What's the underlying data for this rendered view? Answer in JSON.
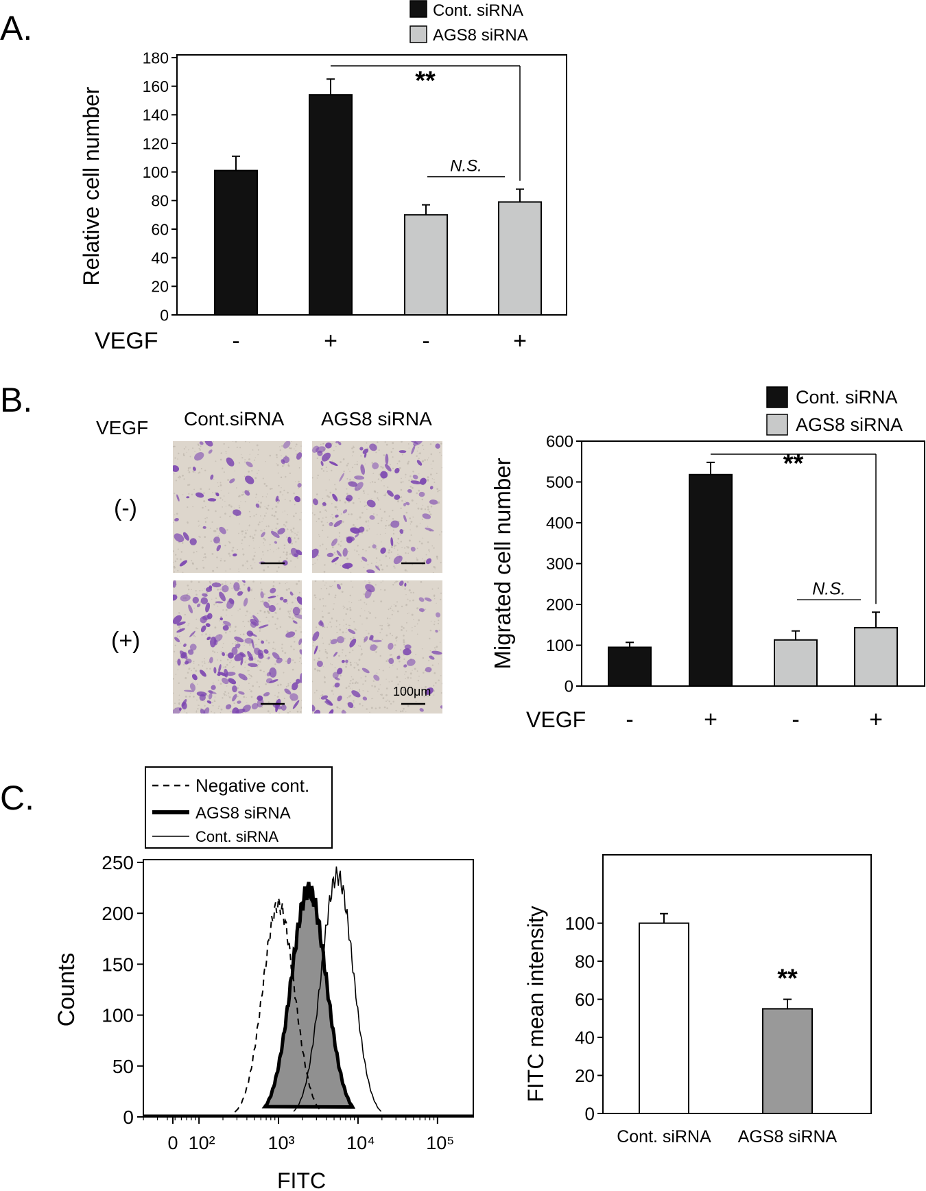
{
  "panels": {
    "A": "A.",
    "B": "B.",
    "C": "C."
  },
  "colors": {
    "control": "#111111",
    "ags8": "#c8c9c9",
    "fitc_control_bar": "#ffffff",
    "fitc_ags8_bar": "#999999",
    "stain": "#7b45b0",
    "background_tissue": "#ddd6cc"
  },
  "legend_a": [
    "Cont. siRNA",
    "AGS8 siRNA"
  ],
  "legend_b": [
    "Cont. siRNA",
    "AGS8 siRNA"
  ],
  "micrograph": {
    "row_label": "VEGF",
    "col_labels": [
      "Cont.siRNA",
      "AGS8 siRNA"
    ],
    "row_labels": [
      "(-)",
      "(+)"
    ],
    "scale_label": "100μm",
    "stain_density": [
      [
        0.18,
        0.3
      ],
      [
        0.55,
        0.22
      ]
    ]
  },
  "legend_c": [
    "Negative cont.",
    "AGS8 siRNA",
    "Cont. siRNA"
  ],
  "chart_data": [
    {
      "type": "bar",
      "panel": "A",
      "categories": [
        "-",
        "+",
        "-",
        "+"
      ],
      "category_axis_label": "VEGF",
      "series_index": [
        0,
        0,
        1,
        1
      ],
      "values": [
        101,
        154,
        70,
        79
      ],
      "errors": [
        10,
        11,
        7,
        9
      ],
      "ylabel": "Relative cell number",
      "ylim": [
        0,
        180
      ],
      "yticks": [
        0,
        20,
        40,
        60,
        80,
        100,
        120,
        140,
        160,
        180
      ],
      "annotations": [
        {
          "text": "**",
          "from": 1,
          "to": 3
        },
        {
          "text": "N.S.",
          "from": 2,
          "to": 3
        }
      ]
    },
    {
      "type": "bar",
      "panel": "B",
      "categories": [
        "-",
        "+",
        "-",
        "+"
      ],
      "category_axis_label": "VEGF",
      "series_index": [
        0,
        0,
        1,
        1
      ],
      "values": [
        95,
        518,
        113,
        143
      ],
      "errors": [
        12,
        30,
        22,
        38
      ],
      "ylabel": "Migrated cell number",
      "ylim": [
        0,
        600
      ],
      "yticks": [
        0,
        100,
        200,
        300,
        400,
        500,
        600
      ],
      "annotations": [
        {
          "text": "**",
          "from": 1,
          "to": 3
        },
        {
          "text": "N.S.",
          "from": 2,
          "to": 3
        }
      ]
    },
    {
      "type": "line",
      "panel": "C-histogram",
      "xlabel": "FITC",
      "ylabel": "Counts",
      "ylim": [
        0,
        250
      ],
      "yticks": [
        0,
        50,
        100,
        150,
        200,
        250
      ],
      "xticks": [
        "0",
        "10²",
        "10³",
        "10⁴",
        "10⁵"
      ],
      "xscale": "log",
      "series": [
        {
          "name": "Negative cont.",
          "style": "dashed",
          "peak_x": 1000,
          "peak_y": 208,
          "spread": 0.2
        },
        {
          "name": "AGS8 siRNA",
          "style": "thick-filled",
          "peak_x": 2400,
          "peak_y": 223,
          "spread": 0.22
        },
        {
          "name": "Cont. siRNA",
          "style": "thin",
          "peak_x": 5500,
          "peak_y": 237,
          "spread": 0.2
        }
      ]
    },
    {
      "type": "bar",
      "panel": "C-bar",
      "categories": [
        "Cont. siRNA",
        "AGS8 siRNA"
      ],
      "values": [
        100,
        55
      ],
      "errors": [
        5,
        5
      ],
      "ylabel": "FITC mean intensity",
      "ylim": [
        0,
        115
      ],
      "yticks": [
        0,
        20,
        40,
        60,
        80,
        100
      ],
      "annotations": [
        {
          "text": "**",
          "over": 1
        }
      ]
    }
  ]
}
